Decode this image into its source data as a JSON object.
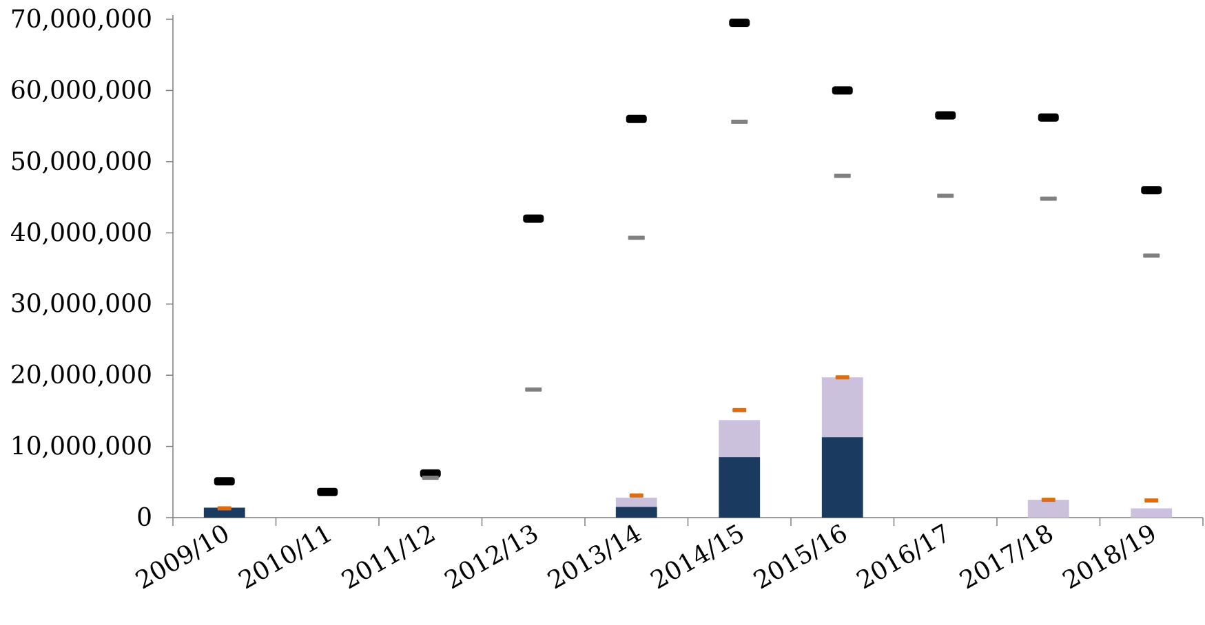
{
  "chart_data": {
    "type": "bar",
    "title": "",
    "xlabel": "",
    "ylabel": "",
    "ylim": [
      0,
      70000000
    ],
    "yticks": [
      0,
      10000000,
      20000000,
      30000000,
      40000000,
      50000000,
      60000000,
      70000000
    ],
    "ytick_labels": [
      "0",
      "10,000,000",
      "20,000,000",
      "30,000,000",
      "40,000,000",
      "50,000,000",
      "60,000,000",
      "70,000,000"
    ],
    "categories": [
      "2009/10",
      "2010/11",
      "2011/12",
      "2012/13",
      "2013/14",
      "2014/15",
      "2015/16",
      "2016/17",
      "2017/18",
      "2018/19"
    ],
    "grid": false,
    "legend": "none",
    "colors": {
      "bar_dark": "#1a3a5f",
      "bar_light": "#ccc1dc",
      "marker_black": "#000000",
      "marker_gray": "#808080",
      "marker_orange": "#e06c10"
    },
    "series": [
      {
        "kind": "stacked-bar",
        "color": "bar_dark",
        "values": [
          1400000,
          0,
          0,
          0,
          1500000,
          8500000,
          11300000,
          0,
          0,
          0
        ]
      },
      {
        "kind": "stacked-bar",
        "color": "bar_light",
        "values": [
          0,
          0,
          0,
          0,
          1300000,
          5200000,
          8400000,
          0,
          2500000,
          1300000
        ]
      },
      {
        "kind": "marker",
        "color": "marker_black",
        "values": [
          5100000,
          3600000,
          6200000,
          42000000,
          56000000,
          69500000,
          60000000,
          56500000,
          56200000,
          46000000
        ]
      },
      {
        "kind": "marker",
        "color": "marker_gray",
        "values": [
          null,
          null,
          5600000,
          18000000,
          39300000,
          55600000,
          48000000,
          45200000,
          44800000,
          36800000
        ]
      },
      {
        "kind": "marker",
        "color": "marker_orange",
        "values": [
          1300000,
          null,
          null,
          null,
          3100000,
          15100000,
          19700000,
          null,
          2500000,
          2400000
        ]
      }
    ]
  }
}
